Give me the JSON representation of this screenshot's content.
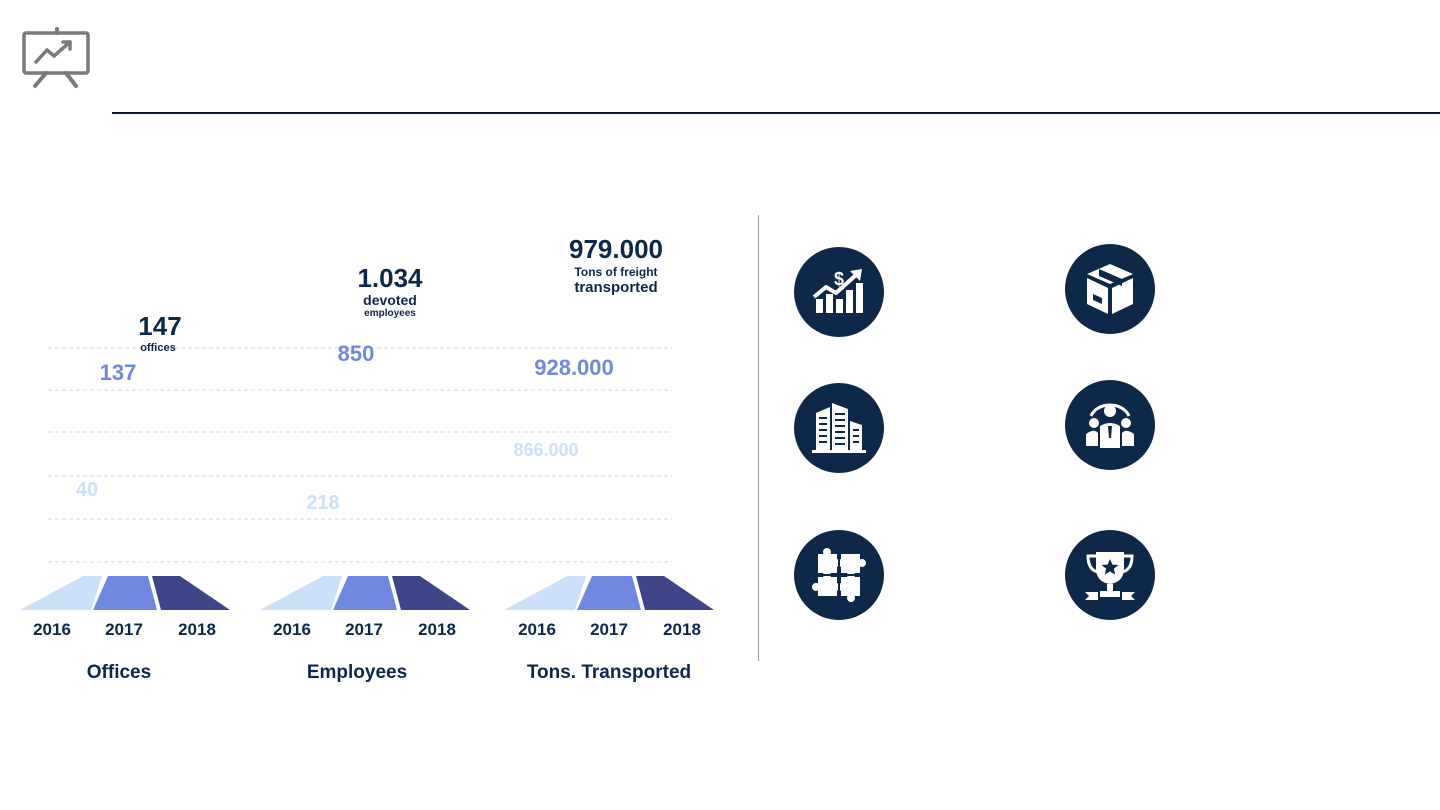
{
  "colors": {
    "navy": "#0d2848",
    "light": "#cde0fa",
    "mid": "#7088df",
    "dark": "#3e4589",
    "grid": "#d4d4d4",
    "rule": "#0d1b2e",
    "icon_gray": "#7a7a7a"
  },
  "header": {
    "icon": "presentation-chart-icon"
  },
  "chart_data": {
    "type": "bar",
    "years": [
      "2016",
      "2017",
      "2018"
    ],
    "groups": [
      {
        "key": "offices",
        "label": "Offices",
        "values": [
          40,
          137,
          147
        ],
        "value_labels": [
          "40",
          "137",
          "147"
        ],
        "caption": [
          "offices"
        ]
      },
      {
        "key": "employees",
        "label": "Employees",
        "values": [
          218,
          850,
          1034
        ],
        "value_labels": [
          "218",
          "850",
          "1.034"
        ],
        "caption": [
          "devoted",
          "employees"
        ]
      },
      {
        "key": "tons",
        "label": "Tons. Transported",
        "values": [
          866000,
          928000,
          979000
        ],
        "value_labels": [
          "866.000",
          "928.000",
          "979.000"
        ],
        "caption": [
          "Tons of freight",
          "transported"
        ]
      }
    ],
    "grid": true
  },
  "feature_icons": [
    {
      "name": "revenue-growth-icon"
    },
    {
      "name": "package-box-icon"
    },
    {
      "name": "office-buildings-icon"
    },
    {
      "name": "team-leader-icon"
    },
    {
      "name": "puzzle-pieces-icon"
    },
    {
      "name": "trophy-award-icon"
    }
  ]
}
